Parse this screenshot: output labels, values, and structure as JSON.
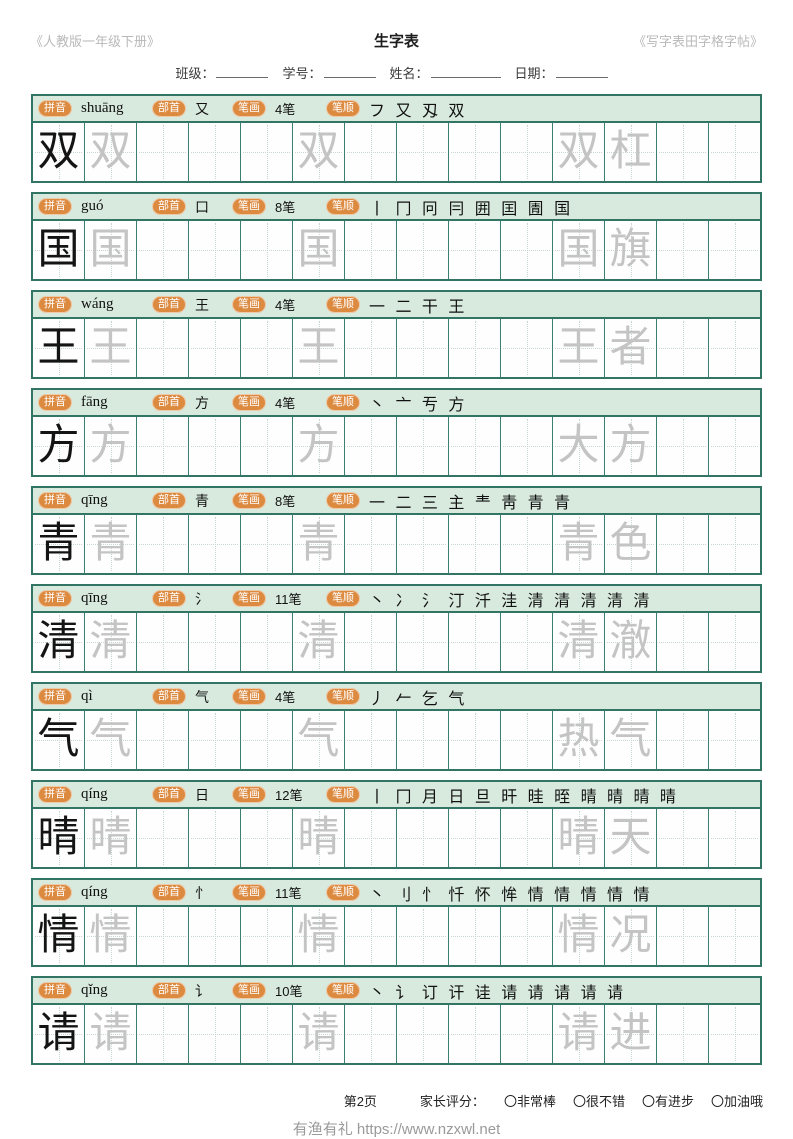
{
  "title_bar": {
    "left": "《人教版一年级下册》",
    "center": "生字表",
    "right": "《写字表田字格字帖》"
  },
  "info_fields": [
    {
      "label": "班级：",
      "value": "",
      "width": "normal"
    },
    {
      "label": "学号：",
      "value": "",
      "width": "normal"
    },
    {
      "label": "姓名：",
      "value": "",
      "width": "wide"
    },
    {
      "label": "日期：",
      "value": "",
      "width": "normal"
    }
  ],
  "badges": {
    "pinyin": "拼音",
    "radical": "部首",
    "strokes": "笔画",
    "order": "笔顺"
  },
  "grid": {
    "columns": 14,
    "pattern": {
      "0": "char-black",
      "1": "char-gray",
      "5": "char-gray",
      "10": "word0-gray",
      "11": "word1-gray"
    }
  },
  "rows": [
    {
      "char": "双",
      "pinyin": "shuāng",
      "radical": "又",
      "stroke_count": "4笔",
      "stroke_order": "フ 又 刄 双",
      "word": "双杠"
    },
    {
      "char": "国",
      "pinyin": "guó",
      "radical": "口",
      "stroke_count": "8笔",
      "stroke_order": "丨 冂 冋 冃 囲 囯 圊 国",
      "word": "国旗"
    },
    {
      "char": "王",
      "pinyin": "wáng",
      "radical": "王",
      "stroke_count": "4笔",
      "stroke_order": "一 二 干 王",
      "word": "王者"
    },
    {
      "char": "方",
      "pinyin": "fāng",
      "radical": "方",
      "stroke_count": "4笔",
      "stroke_order": "丶 亠 亐 方",
      "word": "大方"
    },
    {
      "char": "青",
      "pinyin": "qīng",
      "radical": "青",
      "stroke_count": "8笔",
      "stroke_order": "一 二 三 主 龶 靑 青 青",
      "word": "青色"
    },
    {
      "char": "清",
      "pinyin": "qīng",
      "radical": "氵",
      "stroke_count": "11笔",
      "stroke_order": "丶 冫 氵 汀 汘 洼 清 清 清 清 清",
      "word": "清澈"
    },
    {
      "char": "气",
      "pinyin": "qì",
      "radical": "气",
      "stroke_count": "4笔",
      "stroke_order": "丿 𠂉 乞 气",
      "word": "热气"
    },
    {
      "char": "晴",
      "pinyin": "qíng",
      "radical": "日",
      "stroke_count": "12笔",
      "stroke_order": "丨 冂 月 日 旦 旰 晆 晊 晴 晴 晴 晴",
      "word": "晴天"
    },
    {
      "char": "情",
      "pinyin": "qíng",
      "radical": "忄",
      "stroke_count": "11笔",
      "stroke_order": "丶 刂 忄 忏 怀 恈 情 情 情 情 情",
      "word": "情况"
    },
    {
      "char": "请",
      "pinyin": "qǐng",
      "radical": "讠",
      "stroke_count": "10笔",
      "stroke_order": "丶 讠 订 讦 诖 请 请 请 请 请",
      "word": "请进"
    }
  ],
  "footer": {
    "page_number": "第2页",
    "rating_label": "家长评分：",
    "rating_options": [
      "〇非常棒",
      "〇很不错",
      "〇有进步",
      "〇加油哦"
    ],
    "watermark": "有渔有礼 https://www.nzxwl.net"
  },
  "colors": {
    "table_border": "#337565",
    "header_bg": "#d8eade",
    "badge_orange": "#dc8a40",
    "gray_char": "#c4c4c4",
    "dotted_guide": "#c6d8cf",
    "muted_text": "#b9b9b9",
    "watermark_text": "#9a9a9a"
  }
}
